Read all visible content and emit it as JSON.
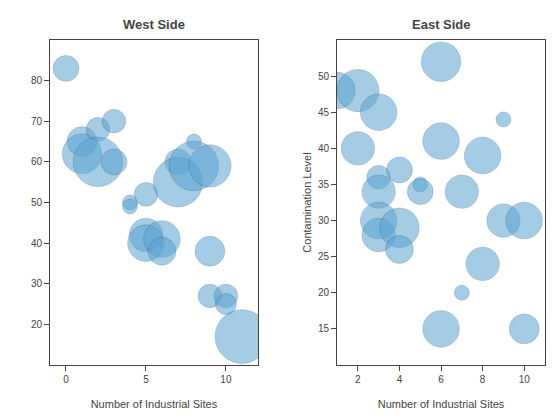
{
  "chart_data": [
    {
      "type": "scatter",
      "title": "West Side",
      "xlabel": "Number of Industrial Sites",
      "x": [
        0,
        1,
        1,
        2,
        2,
        3,
        3,
        4,
        4,
        5,
        5,
        5,
        6,
        6,
        7,
        7,
        8,
        8,
        9,
        9,
        9,
        10,
        10,
        11
      ],
      "y": [
        83,
        65,
        62,
        68,
        60,
        70,
        60,
        50,
        49,
        52,
        42,
        40,
        41,
        38,
        60,
        55,
        65,
        59,
        59,
        38,
        27,
        27,
        25,
        17
      ],
      "sizes": [
        300,
        400,
        700,
        250,
        1100,
        250,
        300,
        100,
        100,
        250,
        500,
        600,
        600,
        350,
        300,
        1100,
        100,
        1100,
        800,
        400,
        250,
        250,
        200,
        1300
      ],
      "color": "#5ba3d0",
      "xlim": [
        -1,
        12
      ],
      "ylim": [
        10,
        90
      ],
      "xticks": [
        0,
        5,
        10
      ],
      "yticks": [
        20,
        30,
        40,
        50,
        60,
        70,
        80
      ],
      "grid": false
    },
    {
      "type": "scatter",
      "title": "East Side",
      "xlabel": "Number of Industrial Sites",
      "ylabel": "Contamination Level",
      "x": [
        1,
        2,
        2,
        3,
        3,
        3,
        3,
        3,
        4,
        4,
        4,
        5,
        5,
        6,
        6,
        6,
        7,
        7,
        8,
        8,
        9,
        9,
        10,
        10
      ],
      "y": [
        48,
        48,
        40,
        45,
        36,
        34,
        30,
        28,
        37,
        29,
        26,
        35,
        34,
        52,
        15,
        41,
        34,
        20,
        39,
        24,
        44,
        30,
        30,
        15
      ],
      "sizes": [
        600,
        800,
        500,
        600,
        250,
        500,
        600,
        500,
        300,
        700,
        350,
        100,
        300,
        700,
        600,
        600,
        500,
        100,
        600,
        500,
        100,
        500,
        600,
        400
      ],
      "color": "#5ba3d0",
      "xlim": [
        1,
        11
      ],
      "ylim": [
        10,
        55
      ],
      "xticks": [
        2,
        4,
        6,
        8,
        10
      ],
      "yticks": [
        15,
        20,
        25,
        30,
        35,
        40,
        45,
        50
      ],
      "grid": false
    }
  ]
}
